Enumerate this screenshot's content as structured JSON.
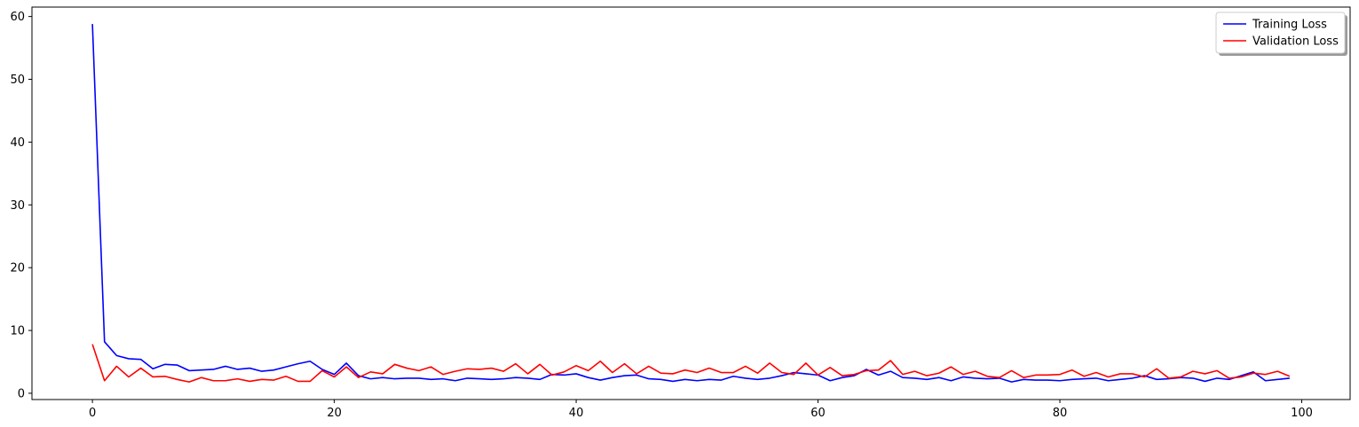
{
  "chart_data": {
    "type": "line",
    "title": "",
    "xlabel": "",
    "ylabel": "",
    "xlim": [
      -5,
      104
    ],
    "ylim": [
      -1,
      61.5
    ],
    "xticks": [
      0,
      20,
      40,
      60,
      80,
      100
    ],
    "yticks": [
      0,
      10,
      20,
      30,
      40,
      50,
      60
    ],
    "grid": false,
    "legend_position": "top-right",
    "x": [
      0,
      1,
      2,
      3,
      4,
      5,
      6,
      7,
      8,
      9,
      10,
      11,
      12,
      13,
      14,
      15,
      16,
      17,
      18,
      19,
      20,
      21,
      22,
      23,
      24,
      25,
      26,
      27,
      28,
      29,
      30,
      31,
      32,
      33,
      34,
      35,
      36,
      37,
      38,
      39,
      40,
      41,
      42,
      43,
      44,
      45,
      46,
      47,
      48,
      49,
      50,
      51,
      52,
      53,
      54,
      55,
      56,
      57,
      58,
      59,
      60,
      61,
      62,
      63,
      64,
      65,
      66,
      67,
      68,
      69,
      70,
      71,
      72,
      73,
      74,
      75,
      76,
      77,
      78,
      79,
      80,
      81,
      82,
      83,
      84,
      85,
      86,
      87,
      88,
      89,
      90,
      91,
      92,
      93,
      94,
      95,
      96,
      97,
      98,
      99
    ],
    "series": [
      {
        "name": "Training Loss",
        "color": "#0000ff",
        "values": [
          58.8,
          8.2,
          6.0,
          5.5,
          5.4,
          3.9,
          4.6,
          4.5,
          3.6,
          3.7,
          3.8,
          4.3,
          3.8,
          4.0,
          3.5,
          3.7,
          4.2,
          4.7,
          5.1,
          3.8,
          3.0,
          4.8,
          2.8,
          2.3,
          2.5,
          2.3,
          2.4,
          2.4,
          2.2,
          2.3,
          2.0,
          2.4,
          2.3,
          2.2,
          2.3,
          2.5,
          2.4,
          2.2,
          3.0,
          2.9,
          3.1,
          2.5,
          2.1,
          2.5,
          2.8,
          2.9,
          2.3,
          2.2,
          1.9,
          2.2,
          2.0,
          2.2,
          2.1,
          2.7,
          2.4,
          2.2,
          2.4,
          2.8,
          3.3,
          3.1,
          2.9,
          2.0,
          2.5,
          2.8,
          3.8,
          2.9,
          3.5,
          2.5,
          2.4,
          2.2,
          2.5,
          2.0,
          2.6,
          2.4,
          2.3,
          2.4,
          1.8,
          2.2,
          2.1,
          2.1,
          2.0,
          2.2,
          2.3,
          2.4,
          2.0,
          2.2,
          2.4,
          2.8,
          2.2,
          2.3,
          2.5,
          2.4,
          1.9,
          2.4,
          2.2,
          2.8,
          3.4,
          2.0,
          2.2,
          2.4
        ]
      },
      {
        "name": "Validation Loss",
        "color": "#ff0000",
        "values": [
          7.8,
          2.0,
          4.3,
          2.6,
          4.0,
          2.6,
          2.7,
          2.2,
          1.8,
          2.5,
          2.0,
          2.0,
          2.3,
          1.9,
          2.2,
          2.1,
          2.7,
          1.9,
          1.9,
          3.6,
          2.6,
          4.2,
          2.5,
          3.4,
          3.1,
          4.6,
          4.0,
          3.6,
          4.2,
          3.0,
          3.5,
          3.9,
          3.8,
          4.0,
          3.5,
          4.7,
          3.1,
          4.6,
          2.9,
          3.4,
          4.4,
          3.6,
          5.1,
          3.3,
          4.7,
          3.1,
          4.3,
          3.2,
          3.1,
          3.7,
          3.3,
          4.0,
          3.3,
          3.3,
          4.3,
          3.2,
          4.8,
          3.3,
          3.0,
          4.8,
          2.9,
          4.1,
          2.8,
          3.0,
          3.6,
          3.7,
          5.2,
          3.0,
          3.5,
          2.8,
          3.2,
          4.2,
          3.0,
          3.5,
          2.7,
          2.5,
          3.6,
          2.5,
          2.9,
          2.9,
          3.0,
          3.7,
          2.7,
          3.3,
          2.6,
          3.1,
          3.1,
          2.6,
          3.9,
          2.4,
          2.6,
          3.5,
          3.1,
          3.6,
          2.4,
          2.6,
          3.2,
          3.0,
          3.5,
          2.7
        ]
      }
    ]
  }
}
